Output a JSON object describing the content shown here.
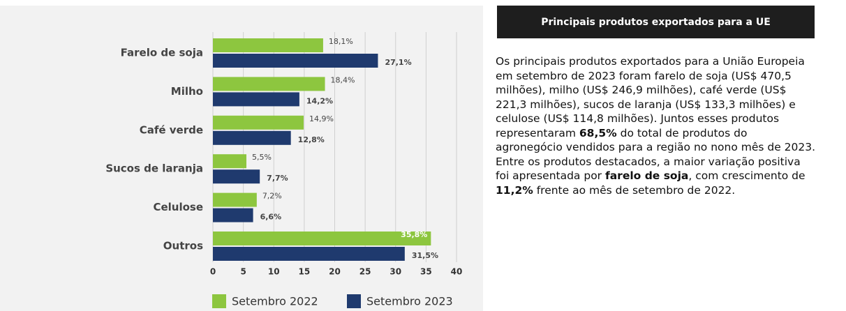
{
  "chart_data": {
    "type": "bar",
    "orientation": "horizontal",
    "categories": [
      "Farelo de soja",
      "Milho",
      "Café verde",
      "Sucos de laranja",
      "Celulose",
      "Outros"
    ],
    "series": [
      {
        "name": "Setembro 2022",
        "color": "#8dc63f",
        "values": [
          18.1,
          18.4,
          14.9,
          5.5,
          7.2,
          35.8
        ],
        "value_labels": [
          "18,1%",
          "18,4%",
          "14,9%",
          "5,5%",
          "7,2%",
          "35,8%"
        ]
      },
      {
        "name": "Setembro 2023",
        "color": "#1f3a6e",
        "values": [
          27.1,
          14.2,
          12.8,
          7.7,
          6.6,
          31.5
        ],
        "value_labels": [
          "27,1%",
          "14,2%",
          "12,8%",
          "7,7%",
          "6,6%",
          "31,5%"
        ]
      }
    ],
    "xlim": [
      0,
      40
    ],
    "xticks": [
      0,
      5,
      10,
      15,
      20,
      25,
      30,
      35,
      40
    ],
    "grid": true,
    "legend": "bottom"
  },
  "panel": {
    "title": "Principais produtos exportados para a UE",
    "paragraph": [
      {
        "text": "Os principais produtos exportados para a União Europeia em setembro de 2023 foram farelo de soja (US$ 470,5 milhões), milho (US$ 246,9 milhões), café verde (US$ 221,3 milhões), sucos de laranja (US$ 133,3 milhões) e celulose (US$ 114,8 milhões). Juntos esses produtos representaram ",
        "bold": false
      },
      {
        "text": "68,5%",
        "bold": true
      },
      {
        "text": " do total de produtos do agronegócio vendidos para a região no nono mês de 2023. Entre os produtos destacados, a maior variação positiva foi apresentada por ",
        "bold": false
      },
      {
        "text": "farelo de soja",
        "bold": true
      },
      {
        "text": ", com crescimento de ",
        "bold": false
      },
      {
        "text": "11,2%",
        "bold": true
      },
      {
        "text": " frente ao mês de setembro de 2022.",
        "bold": false
      }
    ]
  }
}
